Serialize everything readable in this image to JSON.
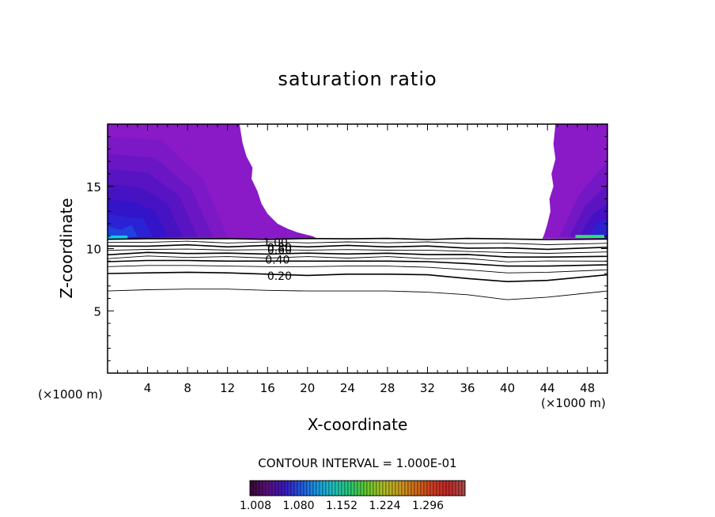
{
  "chart_data": {
    "type": "contour",
    "title": "saturation ratio",
    "xlabel": "X-coordinate",
    "ylabel": "Z-coordinate",
    "x_unit_left": "(×1000 m)",
    "x_unit_right": "(×1000 m)",
    "xlim": [
      0,
      50
    ],
    "ylim": [
      0,
      20
    ],
    "xticks": [
      4,
      8,
      12,
      16,
      20,
      24,
      28,
      32,
      36,
      40,
      44,
      48
    ],
    "yticks": [
      5,
      10,
      15
    ],
    "contour_interval_text": "CONTOUR INTERVAL = 1.000E-01",
    "contour_labels": [
      {
        "text": "1.00",
        "x": 16.8,
        "z": 10.5
      },
      {
        "text": "0.80",
        "x": 17.2,
        "z": 10.1
      },
      {
        "text": "0.60",
        "x": 17.2,
        "z": 9.9
      },
      {
        "text": "0.40",
        "x": 17.0,
        "z": 9.1
      },
      {
        "text": "0.20",
        "x": 17.2,
        "z": 7.8
      }
    ],
    "contour_lines": [
      {
        "level": 1.0,
        "z": [
          10.75,
          10.8,
          10.8,
          10.8,
          10.75,
          10.8,
          10.8,
          10.8,
          10.75,
          10.8,
          10.8,
          10.7,
          10.8
        ]
      },
      {
        "level": 0.9,
        "z": [
          10.45,
          10.55,
          10.55,
          10.5,
          10.5,
          10.5,
          10.5,
          10.5,
          10.5,
          10.45,
          10.4,
          10.35,
          10.4
        ]
      },
      {
        "level": 0.8,
        "z": [
          10.15,
          10.25,
          10.25,
          10.2,
          10.2,
          10.2,
          10.2,
          10.2,
          10.15,
          10.1,
          10.0,
          10.0,
          10.05
        ]
      },
      {
        "level": 0.7,
        "z": [
          9.85,
          9.95,
          9.95,
          9.9,
          9.9,
          9.9,
          9.9,
          9.9,
          9.85,
          9.8,
          9.65,
          9.65,
          9.7
        ]
      },
      {
        "level": 0.6,
        "z": [
          9.55,
          9.65,
          9.65,
          9.6,
          9.6,
          9.6,
          9.6,
          9.6,
          9.55,
          9.5,
          9.35,
          9.3,
          9.4
        ]
      },
      {
        "level": 0.5,
        "z": [
          9.25,
          9.35,
          9.35,
          9.3,
          9.3,
          9.3,
          9.3,
          9.3,
          9.25,
          9.15,
          9.0,
          8.95,
          9.05
        ]
      },
      {
        "level": 0.4,
        "z": [
          8.95,
          9.05,
          9.05,
          9.0,
          9.0,
          9.0,
          9.0,
          9.0,
          8.95,
          8.8,
          8.6,
          8.6,
          8.7
        ]
      },
      {
        "level": 0.3,
        "z": [
          8.55,
          8.65,
          8.65,
          8.6,
          8.55,
          8.55,
          8.6,
          8.6,
          8.5,
          8.3,
          8.05,
          8.1,
          8.3
        ]
      },
      {
        "level": 0.2,
        "z": [
          8.0,
          8.05,
          8.1,
          8.05,
          7.95,
          7.85,
          7.95,
          7.95,
          7.9,
          7.6,
          7.35,
          7.45,
          7.9
        ]
      },
      {
        "level": 0.1,
        "z": [
          6.6,
          6.7,
          6.75,
          6.75,
          6.65,
          6.6,
          6.6,
          6.6,
          6.5,
          6.3,
          5.9,
          6.1,
          6.6
        ]
      }
    ],
    "contour_x": [
      0,
      4,
      8,
      12,
      16,
      20,
      24,
      28,
      32,
      36,
      40,
      44,
      50
    ],
    "filled_regions": [
      {
        "name": "left-supersaturated",
        "x_range": [
          0,
          21.0
        ],
        "z_range": [
          10.8,
          20
        ],
        "min": 1.008,
        "max": 1.08
      },
      {
        "name": "right-supersaturated",
        "x_range": [
          43.5,
          50
        ],
        "z_range": [
          10.8,
          20
        ],
        "min": 1.008,
        "max": 1.152
      }
    ],
    "colorbar": {
      "labels": [
        "1.008",
        "1.080",
        "1.152",
        "1.224",
        "1.296"
      ],
      "colors": [
        "#3a0a3a",
        "#5a1080",
        "#3a18c0",
        "#2255e0",
        "#1a98e0",
        "#20c0c0",
        "#28c878",
        "#60c830",
        "#a8c028",
        "#c8a020",
        "#d07018",
        "#d04020",
        "#c02828",
        "#b04848"
      ]
    },
    "palette": {
      "purple": "#8a1ac8",
      "violet": "#6a16c4",
      "indigo": "#4c14c0",
      "blue": "#2e1ad0",
      "bright_blue": "#1a60e8",
      "cyan": "#18c8e8",
      "green": "#30e070"
    }
  }
}
